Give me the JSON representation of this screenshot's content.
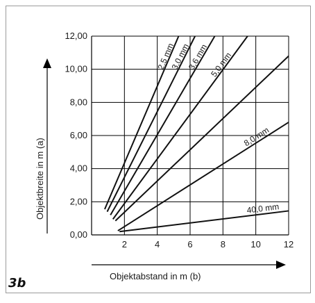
{
  "figure_label": "3b",
  "chart_data": {
    "type": "line",
    "xlabel": "Objektabstand in m (b)",
    "ylabel": "Objektbreite in m (a)",
    "xlim": [
      0,
      12
    ],
    "ylim": [
      0,
      12
    ],
    "x_ticks": [
      2,
      4,
      6,
      8,
      10,
      12
    ],
    "x_tick_labels": [
      "2",
      "4",
      "6",
      "8",
      "10",
      "12"
    ],
    "y_ticks": [
      0,
      2,
      4,
      6,
      8,
      10,
      12
    ],
    "y_tick_labels": [
      "0,00",
      "2,00",
      "4,00",
      "6,00",
      "8,00",
      "10,00",
      "12,00"
    ],
    "grid": true,
    "series": [
      {
        "name": "2,5 mm",
        "x": [
          0.8,
          5.3
        ],
        "y": [
          1.55,
          12.0
        ]
      },
      {
        "name": "3,0 mm",
        "x": [
          0.95,
          6.3
        ],
        "y": [
          1.4,
          12.0
        ]
      },
      {
        "name": "3,6 mm",
        "x": [
          1.15,
          7.5
        ],
        "y": [
          1.2,
          12.0
        ]
      },
      {
        "name": "5,0 mm",
        "x": [
          1.3,
          9.5
        ],
        "y": [
          0.95,
          12.0
        ]
      },
      {
        "name": "8,0 mm",
        "x": [
          1.45,
          12.0
        ],
        "y": [
          0.85,
          10.8
        ]
      },
      {
        "name": "8,0 mm",
        "x": [
          1.6,
          12.0
        ],
        "y": [
          0.25,
          6.8
        ]
      },
      {
        "name": "40,0 mm",
        "x": [
          1.7,
          12.0
        ],
        "y": [
          0.2,
          1.45
        ]
      }
    ],
    "series_labels": [
      "2,5 mm",
      "3,0 mm",
      "3,6 mm",
      "5,0 mm",
      "",
      "8,0 mm",
      "40,0 mm"
    ]
  }
}
